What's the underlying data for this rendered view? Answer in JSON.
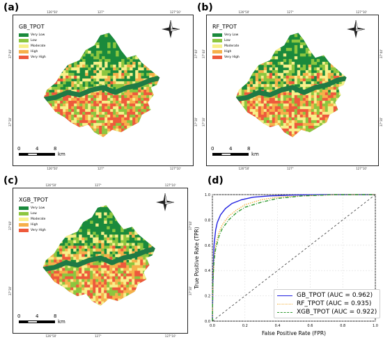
{
  "panels": [
    {
      "letter": "(a)",
      "title": "GB_TPOT"
    },
    {
      "letter": "(b)",
      "title": "RF_TPOT"
    },
    {
      "letter": "(c)",
      "title": "XGB_TPOT"
    },
    {
      "letter": "(d)"
    }
  ],
  "legend": {
    "items": [
      {
        "label": "Very Low",
        "color": "#1a8a3c"
      },
      {
        "label": "Low",
        "color": "#8cc63f"
      },
      {
        "label": "Moderate",
        "color": "#f7f08a"
      },
      {
        "label": "High",
        "color": "#f6b04a"
      },
      {
        "label": "Very High",
        "color": "#ee5a3c"
      }
    ]
  },
  "map": {
    "top_ticks": [
      "126°50'",
      "127°",
      "127°10'"
    ],
    "bottom_ticks": [
      "126°50'",
      "127°",
      "127°10'"
    ],
    "side_ticks": [
      "37°40'",
      "37°30'"
    ],
    "scale": {
      "labels": [
        "0",
        "4",
        "8"
      ],
      "unit": "km"
    }
  },
  "roc": {
    "xlabel": "False Positive Rate (FPR)",
    "ylabel": "True Positive Rate (TPR)",
    "ticks": [
      "0.0",
      "0.2",
      "0.4",
      "0.6",
      "0.8",
      "1.0"
    ]
  },
  "chart_data": {
    "type": "line",
    "xlabel": "False Positive Rate (FPR)",
    "ylabel": "True Positive Rate (TPR)",
    "xlim": [
      0,
      1
    ],
    "ylim": [
      0,
      1
    ],
    "grid": true,
    "legend_position": "bottom-right",
    "series": [
      {
        "name": "GB_TPOT (AUC = 0.962)",
        "color": "#1f1fe0",
        "style": "solid",
        "x": [
          0,
          0.003,
          0.01,
          0.02,
          0.03,
          0.05,
          0.08,
          0.12,
          0.18,
          0.25,
          0.35,
          0.5,
          0.7,
          1.0
        ],
        "y": [
          0,
          0.3,
          0.6,
          0.72,
          0.78,
          0.84,
          0.89,
          0.93,
          0.96,
          0.98,
          0.99,
          0.997,
          1.0,
          1.0
        ]
      },
      {
        "name": "RF_TPOT (AUC = 0.935)",
        "color": "#f5b342",
        "style": "dotted",
        "x": [
          0,
          0.003,
          0.01,
          0.02,
          0.04,
          0.06,
          0.1,
          0.15,
          0.2,
          0.3,
          0.4,
          0.55,
          0.75,
          1.0
        ],
        "y": [
          0,
          0.3,
          0.5,
          0.6,
          0.7,
          0.76,
          0.83,
          0.88,
          0.92,
          0.96,
          0.98,
          0.99,
          1.0,
          1.0
        ]
      },
      {
        "name": "XGB_TPOT (AUC = 0.922)",
        "color": "#2e9a2e",
        "style": "dashdot",
        "x": [
          0,
          0.003,
          0.01,
          0.02,
          0.04,
          0.06,
          0.1,
          0.15,
          0.2,
          0.3,
          0.4,
          0.55,
          0.75,
          1.0
        ],
        "y": [
          0,
          0.3,
          0.48,
          0.57,
          0.67,
          0.73,
          0.8,
          0.86,
          0.9,
          0.94,
          0.97,
          0.99,
          1.0,
          1.0
        ]
      },
      {
        "name": "",
        "color": "#333333",
        "style": "dashed",
        "x": [
          0,
          1
        ],
        "y": [
          0,
          1
        ]
      }
    ]
  }
}
